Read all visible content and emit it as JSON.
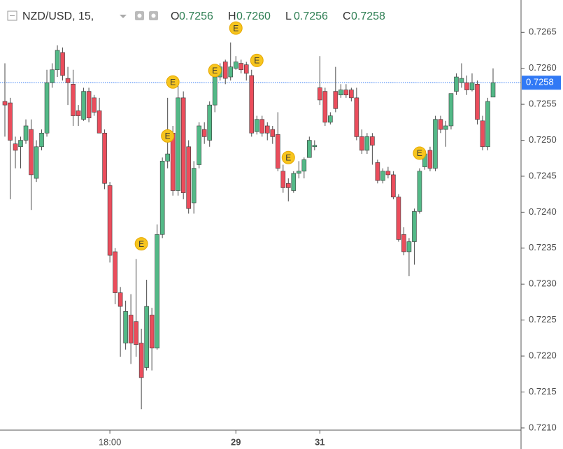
{
  "chart_data": {
    "type": "candlestick",
    "header": {
      "symbol": "NZD/USD, 15,",
      "ohlc": [
        {
          "key": "O",
          "value": "0.7256"
        },
        {
          "key": "H",
          "value": "0.7260"
        },
        {
          "key": "L",
          "value": "0.7256"
        },
        {
          "key": "C",
          "value": "0.7258"
        }
      ]
    },
    "categories": [
      null,
      null,
      null,
      null,
      null,
      null,
      null,
      null,
      null,
      null,
      null,
      null,
      null,
      null,
      null,
      null,
      null,
      null,
      null,
      null,
      "18:00",
      null,
      null,
      null,
      null,
      null,
      null,
      null,
      null,
      null,
      null,
      null,
      null,
      null,
      null,
      null,
      null,
      null,
      null,
      null,
      null,
      null,
      null,
      null,
      "29",
      null,
      null,
      null,
      null,
      null,
      null,
      null,
      null,
      null,
      null,
      null,
      null,
      null,
      null,
      null,
      "31",
      null,
      null,
      null,
      null,
      null,
      null,
      null,
      null,
      null,
      null,
      null,
      null,
      null,
      null,
      null,
      null,
      null,
      null,
      null,
      null,
      null,
      null,
      null,
      null,
      null,
      null,
      null,
      null,
      null,
      null,
      null,
      null,
      null
    ],
    "open": [
      0.72554,
      0.72552,
      0.72495,
      0.72491,
      0.725,
      0.72515,
      0.72447,
      0.72491,
      0.7251,
      0.7258,
      0.72598,
      0.72622,
      0.72586,
      0.72578,
      0.72541,
      0.72529,
      0.72568,
      0.72559,
      0.72541,
      0.7251,
      0.72437,
      0.72345,
      0.72288,
      0.72218,
      0.72257,
      0.72248,
      0.72218,
      0.72184,
      0.72257,
      0.72211,
      0.72369,
      0.72471,
      0.7251,
      0.7243,
      0.72559,
      0.72491,
      0.72413,
      0.72466,
      0.72515,
      0.725,
      0.72549,
      0.72588,
      0.72609,
      0.72588,
      0.726,
      0.72607,
      0.72605,
      0.7259,
      0.72512,
      0.72529,
      0.7252,
      0.72515,
      0.72508,
      0.72457,
      0.7244,
      0.7243,
      0.72454,
      0.72457,
      0.72476,
      0.72491,
      0.72573,
      0.72568,
      0.72525,
      0.72568,
      0.72563,
      0.7257,
      0.7257,
      0.72559,
      0.72505,
      0.72486,
      0.72505,
      0.72469,
      0.72444,
      0.72457,
      0.72452,
      0.72421,
      0.72369,
      0.72345,
      0.72359,
      0.72401,
      0.72463,
      0.72486,
      0.72461,
      0.72529,
      0.72515,
      0.7252,
      0.72568,
      0.7258,
      0.7258,
      0.7257,
      0.72578,
      0.72527,
      0.72491,
      0.7256
    ],
    "high": [
      0.72607,
      0.72559,
      0.72505,
      0.72505,
      0.72529,
      0.72529,
      0.725,
      0.72515,
      0.72598,
      0.72607,
      0.72632,
      0.72629,
      0.72602,
      0.72598,
      0.72549,
      0.72573,
      0.72573,
      0.72563,
      0.72559,
      0.72515,
      0.72442,
      0.7235,
      0.72296,
      0.72277,
      0.72286,
      0.72335,
      0.72238,
      0.72306,
      0.72267,
      0.72383,
      0.72476,
      0.72559,
      0.7252,
      0.72583,
      0.72568,
      0.725,
      0.72471,
      0.72525,
      0.72525,
      0.72554,
      0.72602,
      0.72607,
      0.72612,
      0.72636,
      0.72617,
      0.72612,
      0.72609,
      0.72598,
      0.72534,
      0.72534,
      0.72525,
      0.7252,
      0.72539,
      0.72466,
      0.72447,
      0.72457,
      0.72471,
      0.72476,
      0.72505,
      0.725,
      0.72617,
      0.72573,
      0.72539,
      0.72602,
      0.72578,
      0.72578,
      0.72573,
      0.72573,
      0.72515,
      0.7251,
      0.7251,
      0.72473,
      0.72461,
      0.72463,
      0.72457,
      0.72425,
      0.72379,
      0.72364,
      0.72405,
      0.72461,
      0.72486,
      0.72491,
      0.72534,
      0.72534,
      0.72527,
      0.72565,
      0.72593,
      0.72607,
      0.7259,
      0.72593,
      0.72583,
      0.72534,
      0.72559,
      0.726
    ],
    "low": [
      0.72505,
      0.72418,
      0.72461,
      0.72461,
      0.72495,
      0.72403,
      0.72442,
      0.72486,
      0.72505,
      0.72573,
      0.72588,
      0.72583,
      0.72549,
      0.7252,
      0.7252,
      0.72527,
      0.72525,
      0.72534,
      0.7251,
      0.72432,
      0.7233,
      0.72272,
      0.72199,
      0.72209,
      0.72189,
      0.72199,
      0.72126,
      0.7218,
      0.7218,
      0.72209,
      0.72364,
      0.72461,
      0.72423,
      0.72423,
      0.72418,
      0.72398,
      0.72398,
      0.72461,
      0.72495,
      0.72491,
      0.72539,
      0.72583,
      0.72578,
      0.72583,
      0.72598,
      0.72593,
      0.72583,
      0.72505,
      0.72508,
      0.72505,
      0.725,
      0.72495,
      0.72457,
      0.72427,
      0.72415,
      0.72427,
      0.72447,
      0.72447,
      0.72476,
      0.72486,
      0.72549,
      0.7252,
      0.72522,
      0.72539,
      0.72559,
      0.72559,
      0.72554,
      0.725,
      0.72481,
      0.72481,
      0.72466,
      0.7244,
      0.7244,
      0.72447,
      0.72418,
      0.72359,
      0.7234,
      0.72311,
      0.72327,
      0.72398,
      0.72459,
      0.72457,
      0.72457,
      0.7251,
      0.72491,
      0.72515,
      0.72563,
      0.72573,
      0.72563,
      0.72568,
      0.72522,
      0.72486,
      0.72486,
      0.7256
    ],
    "close": [
      0.72549,
      0.725,
      0.72486,
      0.725,
      0.7252,
      0.72452,
      0.72491,
      0.7251,
      0.7258,
      0.72598,
      0.72625,
      0.7259,
      0.7258,
      0.72534,
      0.72534,
      0.72568,
      0.72531,
      0.72539,
      0.7251,
      0.7244,
      0.7234,
      0.72288,
      0.72269,
      0.72262,
      0.72218,
      0.72216,
      0.7217,
      0.72269,
      0.72211,
      0.72369,
      0.72471,
      0.72481,
      0.7243,
      0.72559,
      0.72427,
      0.72405,
      0.72461,
      0.7252,
      0.72505,
      0.72549,
      0.72588,
      0.72602,
      0.72586,
      0.72602,
      0.72609,
      0.72598,
      0.72593,
      0.7251,
      0.72529,
      0.7251,
      0.7251,
      0.72505,
      0.72461,
      0.72434,
      0.72434,
      0.72454,
      0.72457,
      0.72473,
      0.725,
      0.72493,
      0.72556,
      0.72525,
      0.72534,
      0.72544,
      0.7257,
      0.72563,
      0.72559,
      0.72505,
      0.72486,
      0.72505,
      0.72493,
      0.72444,
      0.72457,
      0.72452,
      0.72421,
      0.72362,
      0.72345,
      0.72359,
      0.72401,
      0.72457,
      0.72481,
      0.72461,
      0.72529,
      0.72515,
      0.7252,
      0.72565,
      0.72588,
      0.72586,
      0.7257,
      0.7258,
      0.72529,
      0.72491,
      0.72554,
      0.7258
    ],
    "up_color": "#53b987",
    "down_color": "#eb4d5c",
    "ylim": [
      0.72097,
      0.72695
    ],
    "yticks": [
      {
        "value": 0.721,
        "label": "0.7210"
      },
      0.7215,
      {
        "value": 0.722,
        "label": "0.7220"
      },
      0.7225,
      {
        "value": 0.723,
        "label": "0.7230"
      },
      0.7235,
      {
        "value": 0.724,
        "label": "0.7240"
      },
      0.7245,
      {
        "value": 0.725,
        "label": "0.7250"
      },
      0.7255,
      {
        "value": 0.726,
        "label": "0.7260"
      },
      0.7265
    ],
    "price_line": {
      "value": 0.7258,
      "label": "0.7258",
      "color": "#3179f5"
    },
    "events": [
      {
        "label": "E",
        "index": 26,
        "price": 0.72356
      },
      {
        "label": "E",
        "index": 31,
        "price": 0.72506
      },
      {
        "label": "E",
        "index": 32,
        "price": 0.72581
      },
      {
        "label": "E",
        "index": 40,
        "price": 0.72597
      },
      {
        "label": "E",
        "index": 44,
        "price": 0.72656
      },
      {
        "label": "E",
        "index": 48,
        "price": 0.72611
      },
      {
        "label": "E",
        "index": 54,
        "price": 0.72476
      },
      {
        "label": "E",
        "index": 79,
        "price": 0.72482
      }
    ]
  }
}
